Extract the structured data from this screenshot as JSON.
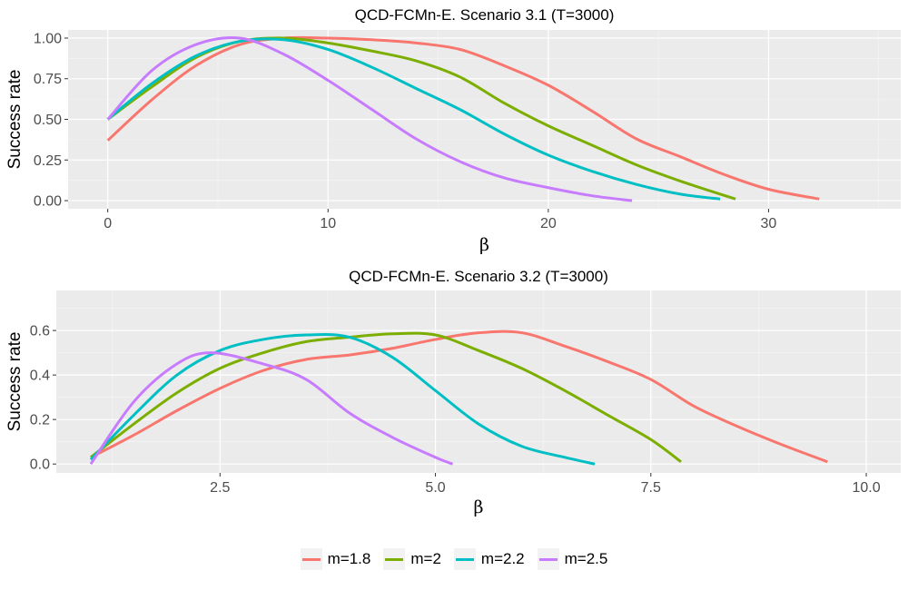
{
  "legend": {
    "items": [
      {
        "label": "m=1.8",
        "color": "#F8766D"
      },
      {
        "label": "m=2",
        "color": "#7CAE00"
      },
      {
        "label": "m=2.2",
        "color": "#00BFC4"
      },
      {
        "label": "m=2.5",
        "color": "#C77CFF"
      }
    ]
  },
  "chart_data": [
    {
      "type": "line",
      "title": "QCD-FCMn-E. Scenario 3.1 (T=3000)",
      "xlabel": "β",
      "ylabel": "Success rate",
      "xlim": [
        -1.8,
        36
      ],
      "ylim": [
        -0.05,
        1.05
      ],
      "xticks": [
        0,
        10,
        20,
        30
      ],
      "xtick_labels": [
        "0",
        "10",
        "20",
        "30"
      ],
      "yticks": [
        0,
        0.25,
        0.5,
        0.75,
        1
      ],
      "ytick_labels": [
        "0.00",
        "0.25",
        "0.50",
        "0.75",
        "1.00"
      ],
      "series": [
        {
          "name": "m=1.8",
          "color": "#F8766D",
          "x": [
            0,
            2,
            4,
            6,
            8,
            10,
            12,
            14,
            16,
            18,
            20,
            22,
            24,
            26,
            28,
            30,
            32.3
          ],
          "y": [
            0.37,
            0.62,
            0.83,
            0.96,
            1.0,
            1.0,
            0.99,
            0.97,
            0.93,
            0.83,
            0.71,
            0.55,
            0.38,
            0.27,
            0.16,
            0.07,
            0.01
          ]
        },
        {
          "name": "m=2",
          "color": "#7CAE00",
          "x": [
            0,
            2,
            4,
            6,
            8,
            10,
            12,
            14,
            16,
            18,
            20,
            22,
            24,
            26,
            28.5
          ],
          "y": [
            0.5,
            0.7,
            0.88,
            0.98,
            1.0,
            0.97,
            0.92,
            0.86,
            0.76,
            0.6,
            0.46,
            0.34,
            0.22,
            0.12,
            0.01
          ]
        },
        {
          "name": "m=2.2",
          "color": "#00BFC4",
          "x": [
            0,
            2,
            4,
            6,
            8,
            10,
            12,
            14,
            16,
            18,
            20,
            22,
            24,
            26,
            27.8
          ],
          "y": [
            0.5,
            0.72,
            0.89,
            0.98,
            0.99,
            0.93,
            0.82,
            0.69,
            0.56,
            0.41,
            0.28,
            0.18,
            0.1,
            0.04,
            0.01
          ]
        },
        {
          "name": "m=2.5",
          "color": "#C77CFF",
          "x": [
            0,
            2,
            4,
            6,
            8,
            10,
            12,
            14,
            16,
            18,
            20,
            22,
            23.8
          ],
          "y": [
            0.5,
            0.8,
            0.96,
            1.0,
            0.9,
            0.74,
            0.56,
            0.38,
            0.24,
            0.14,
            0.08,
            0.03,
            0.0
          ]
        }
      ]
    },
    {
      "type": "line",
      "title": "QCD-FCMn-E. Scenario 3.2 (T=3000)",
      "xlabel": "β",
      "ylabel": "Success rate",
      "xlim": [
        0.6,
        10.4
      ],
      "ylim": [
        -0.04,
        0.78
      ],
      "xticks": [
        2.5,
        5,
        7.5,
        10
      ],
      "xtick_labels": [
        "2.5",
        "5.0",
        "7.5",
        "10.0"
      ],
      "yticks": [
        0,
        0.2,
        0.4,
        0.6
      ],
      "ytick_labels": [
        "0.0",
        "0.2",
        "0.4",
        "0.6"
      ],
      "series": [
        {
          "name": "m=1.8",
          "color": "#F8766D",
          "x": [
            1.0,
            1.5,
            2.0,
            2.5,
            3.0,
            3.5,
            4.0,
            4.5,
            5.0,
            5.5,
            6.0,
            6.5,
            7.0,
            7.5,
            8.0,
            8.5,
            9.0,
            9.55
          ],
          "y": [
            0.03,
            0.13,
            0.24,
            0.34,
            0.42,
            0.47,
            0.49,
            0.52,
            0.56,
            0.59,
            0.59,
            0.53,
            0.46,
            0.38,
            0.26,
            0.17,
            0.09,
            0.01
          ]
        },
        {
          "name": "m=2",
          "color": "#7CAE00",
          "x": [
            1.0,
            1.5,
            2.0,
            2.5,
            3.0,
            3.5,
            4.0,
            4.5,
            5.0,
            5.5,
            6.0,
            6.5,
            7.0,
            7.5,
            7.85
          ],
          "y": [
            0.03,
            0.18,
            0.32,
            0.43,
            0.5,
            0.55,
            0.57,
            0.585,
            0.58,
            0.51,
            0.43,
            0.33,
            0.22,
            0.11,
            0.01
          ]
        },
        {
          "name": "m=2.2",
          "color": "#00BFC4",
          "x": [
            1.0,
            1.5,
            2.0,
            2.5,
            3.0,
            3.5,
            4.0,
            4.5,
            5.0,
            5.5,
            6.0,
            6.5,
            6.85
          ],
          "y": [
            0.02,
            0.22,
            0.4,
            0.51,
            0.56,
            0.58,
            0.57,
            0.48,
            0.33,
            0.18,
            0.08,
            0.03,
            0.0
          ]
        },
        {
          "name": "m=2.5",
          "color": "#C77CFF",
          "x": [
            1.0,
            1.5,
            2.0,
            2.4,
            3.0,
            3.5,
            4.0,
            4.5,
            5.0,
            5.2
          ],
          "y": [
            0.0,
            0.28,
            0.45,
            0.5,
            0.45,
            0.38,
            0.23,
            0.12,
            0.03,
            0.0
          ]
        }
      ]
    }
  ]
}
